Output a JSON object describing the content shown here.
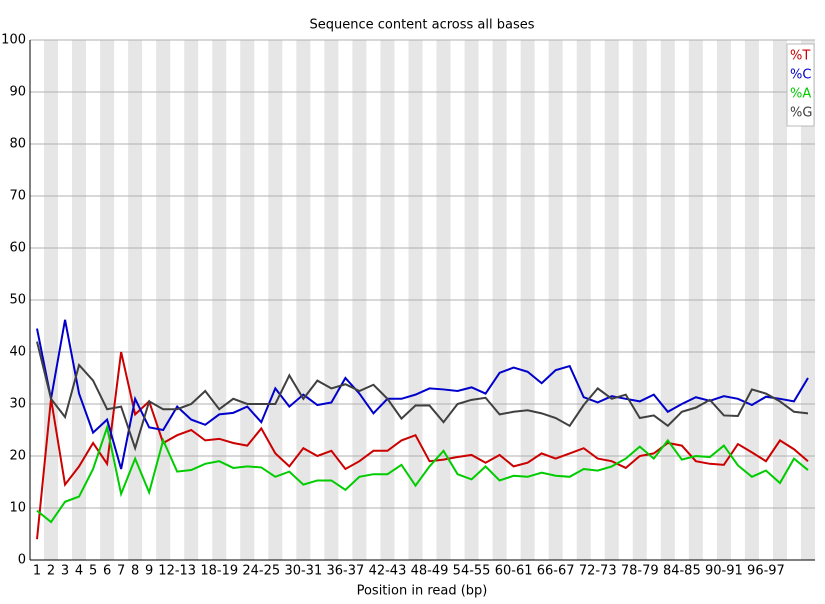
{
  "chart_data": {
    "type": "line",
    "title": "Sequence content across all bases",
    "x_label": "Position in read (bp)",
    "categories": [
      "1",
      "2",
      "3",
      "4",
      "5",
      "6",
      "7",
      "8",
      "9",
      null,
      "12-13",
      null,
      null,
      "18-19",
      null,
      null,
      "24-25",
      null,
      null,
      "30-31",
      null,
      null,
      "36-37",
      null,
      null,
      "42-43",
      null,
      null,
      "48-49",
      null,
      null,
      "54-55",
      null,
      null,
      "60-61",
      null,
      null,
      "66-67",
      null,
      null,
      "72-73",
      null,
      null,
      "78-79",
      null,
      null,
      "84-85",
      null,
      null,
      "90-91",
      null,
      null,
      "96-97",
      null,
      null,
      null
    ],
    "series": [
      {
        "name": "%T",
        "color": "#cc0000",
        "values": [
          4,
          31,
          14.5,
          18,
          22.5,
          18.5,
          40,
          28,
          30.5,
          22.5,
          24,
          25,
          23,
          23.3,
          22.5,
          22,
          25.3,
          20.5,
          18,
          21.5,
          20,
          21,
          17.5,
          19,
          21,
          21,
          23,
          24,
          19,
          19.3,
          19.8,
          20.2,
          18.7,
          20.2,
          18,
          18.7,
          20.5,
          19.5,
          20.5,
          21.5,
          19.5,
          19,
          17.7,
          20,
          20.5,
          22.5,
          22,
          19,
          18.5,
          18.3,
          22.3,
          20.7,
          19,
          23,
          21.3,
          19
        ]
      },
      {
        "name": "%C",
        "color": "#0000cc",
        "values": [
          44.5,
          31,
          46.2,
          32,
          24.5,
          27,
          17.5,
          31,
          25.5,
          25,
          29.5,
          27,
          26,
          28,
          28.3,
          29.5,
          26.5,
          33,
          29.5,
          31.8,
          29.8,
          30.3,
          35,
          32,
          28.2,
          31,
          31,
          31.8,
          33,
          32.8,
          32.5,
          33.2,
          32,
          36,
          37,
          36.2,
          34,
          36.5,
          37.3,
          31.3,
          30.3,
          31.5,
          31,
          30.5,
          31.8,
          28.5,
          30,
          31.3,
          30.6,
          31.5,
          31,
          29.8,
          31.4,
          31,
          30.5,
          35
        ]
      },
      {
        "name": "%A",
        "color": "#00cc00",
        "values": [
          9.5,
          7.3,
          11.2,
          12.2,
          17.5,
          25.5,
          12.7,
          19.5,
          13,
          23,
          17,
          17.3,
          18.5,
          19,
          17.7,
          18,
          17.8,
          16,
          17,
          14.5,
          15.3,
          15.3,
          13.5,
          16,
          16.5,
          16.5,
          18.3,
          14.3,
          18,
          21,
          16.5,
          15.5,
          18,
          15.3,
          16.2,
          16,
          16.8,
          16.2,
          16,
          17.5,
          17.2,
          18,
          19.5,
          21.8,
          19.5,
          23,
          19.3,
          20,
          19.8,
          22,
          18.2,
          16,
          17.2,
          14.8,
          19.5,
          17.3
        ]
      },
      {
        "name": "%G",
        "color": "#404040",
        "values": [
          42,
          31,
          27.5,
          37.5,
          34.5,
          29,
          29.5,
          21.5,
          30.5,
          29,
          29,
          30,
          32.5,
          29,
          31,
          30,
          30,
          30,
          35.5,
          31,
          34.5,
          33,
          33.8,
          32.5,
          33.7,
          31,
          27.2,
          29.7,
          29.7,
          26.5,
          30,
          30.8,
          31.2,
          28,
          28.5,
          28.8,
          28.2,
          27.3,
          25.8,
          29.8,
          33,
          31,
          31.8,
          27.3,
          27.8,
          25.8,
          28.5,
          29.3,
          30.8,
          27.8,
          27.7,
          32.8,
          32,
          30.5,
          28.5,
          28.2
        ]
      }
    ],
    "ylim": [
      0,
      100
    ],
    "yticks": [
      0,
      10,
      20,
      30,
      40,
      50,
      60,
      70,
      80,
      90,
      100
    ],
    "grid": true,
    "legend": "top-right"
  }
}
